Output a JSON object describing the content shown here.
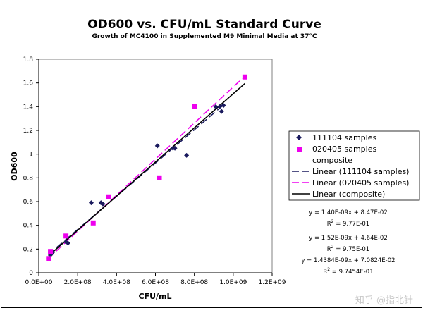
{
  "chart_data": {
    "type": "scatter",
    "title": "OD600 vs. CFU/mL Standard Curve",
    "subtitle": "Growth of MC4100 in Supplemented M9 Minimal Media at 37°C",
    "xlabel": "CFU/mL",
    "ylabel": "OD600",
    "xlim": [
      0,
      1200000000
    ],
    "ylim": [
      0,
      1.8
    ],
    "x_ticks": [
      0,
      200000000,
      400000000,
      600000000,
      800000000,
      1000000000,
      1200000000
    ],
    "x_tick_labels": [
      "0.0E+00",
      "2.0E+08",
      "4.0E+08",
      "6.0E+08",
      "8.0E+08",
      "1.0E+09",
      "1.2E+09"
    ],
    "y_ticks": [
      0,
      0.2,
      0.4,
      0.6,
      0.8,
      1.0,
      1.2,
      1.4,
      1.6,
      1.8
    ],
    "y_tick_labels": [
      "0",
      "0.2",
      "0.4",
      "0.6",
      "0.8",
      "1",
      "1.2",
      "1.4",
      "1.6",
      "1.8"
    ],
    "grid": false,
    "legend_position": "right",
    "series": [
      {
        "name": "111104 samples",
        "marker": "diamond",
        "color": "#1a1a5e",
        "points": [
          [
            50000000,
            0.12
          ],
          [
            60000000,
            0.15
          ],
          [
            70000000,
            0.17
          ],
          [
            140000000,
            0.26
          ],
          [
            150000000,
            0.25
          ],
          [
            270000000,
            0.59
          ],
          [
            320000000,
            0.59
          ],
          [
            330000000,
            0.58
          ],
          [
            610000000,
            1.07
          ],
          [
            690000000,
            1.05
          ],
          [
            700000000,
            1.05
          ],
          [
            760000000,
            0.99
          ],
          [
            910000000,
            1.4
          ],
          [
            930000000,
            1.4
          ],
          [
            940000000,
            1.36
          ],
          [
            950000000,
            1.41
          ]
        ]
      },
      {
        "name": "020405 samples",
        "marker": "square",
        "color": "#ee00ee",
        "points": [
          [
            50000000,
            0.12
          ],
          [
            60000000,
            0.18
          ],
          [
            140000000,
            0.31
          ],
          [
            280000000,
            0.42
          ],
          [
            360000000,
            0.64
          ],
          [
            620000000,
            0.8
          ],
          [
            800000000,
            1.4
          ],
          [
            1060000000,
            1.65
          ]
        ]
      },
      {
        "name": "composite",
        "marker": "none"
      }
    ],
    "trendlines": [
      {
        "name": "Linear (111104 samples)",
        "slope": 1.4e-09,
        "intercept": 0.0847,
        "color": "#1a1a5e",
        "style": "long-dash",
        "x_range": [
          50000000,
          950000000
        ]
      },
      {
        "name": "Linear (020405 samples)",
        "slope": 1.52e-09,
        "intercept": 0.0464,
        "color": "#ee00ee",
        "style": "long-dash",
        "x_range": [
          50000000,
          1060000000
        ]
      },
      {
        "name": "Linear (composite)",
        "slope": 1.4384e-09,
        "intercept": 0.070824,
        "color": "#000000",
        "style": "solid",
        "x_range": [
          50000000,
          1060000000
        ]
      }
    ],
    "annotations": [
      {
        "line1": "y = 1.40E-09x + 8.47E-02",
        "r2_value": " = 9.77E-01"
      },
      {
        "line1": "y = 1.52E-09x + 4.64E-02",
        "r2_value": " = 9.75E-01"
      },
      {
        "line1": "y = 1.4384E-09x + 7.0824E-02",
        "r2_value": " = 9.7454E-01"
      }
    ],
    "r2_label": "R",
    "r2_exponent": "2"
  },
  "watermark": "知乎 @指北针"
}
